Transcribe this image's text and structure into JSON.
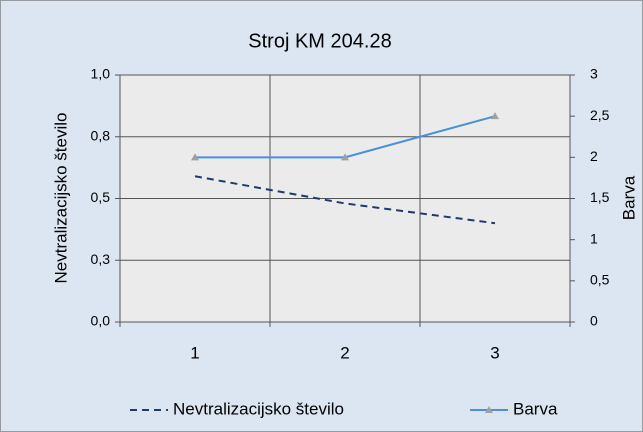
{
  "chart_data": {
    "type": "line",
    "title": "Stroj KM 204.28",
    "categories": [
      "1",
      "2",
      "3"
    ],
    "series": [
      {
        "name": "Nevtralizacijsko število",
        "color": "#1f3a6e",
        "dash": true,
        "values": [
          0.59,
          0.48,
          0.4
        ]
      },
      {
        "name": "Barva",
        "color": "#4a8fdc",
        "axis": "y2",
        "marker": "#a0a0a0",
        "values": [
          2,
          2,
          2.5
        ]
      }
    ],
    "ylabel": "Nevtralizacijsko število",
    "y2label": "Barva",
    "ylim": [
      0,
      1
    ],
    "yticks": [
      {
        "value": 0,
        "label": "0,0"
      },
      {
        "value": 0.25,
        "label": "0,3"
      },
      {
        "value": 0.5,
        "label": "0,5"
      },
      {
        "value": 0.75,
        "label": "0,8"
      },
      {
        "value": 1,
        "label": "1,0"
      }
    ],
    "y2lim": [
      0,
      3
    ],
    "y2ticks": [
      0,
      {
        "value": 0.5,
        "label": "0,5"
      },
      1,
      {
        "value": 1.5,
        "label": "1,5"
      },
      2,
      {
        "value": 2.5,
        "label": "2,5"
      },
      3
    ],
    "grid": true,
    "legend": "bottom"
  }
}
